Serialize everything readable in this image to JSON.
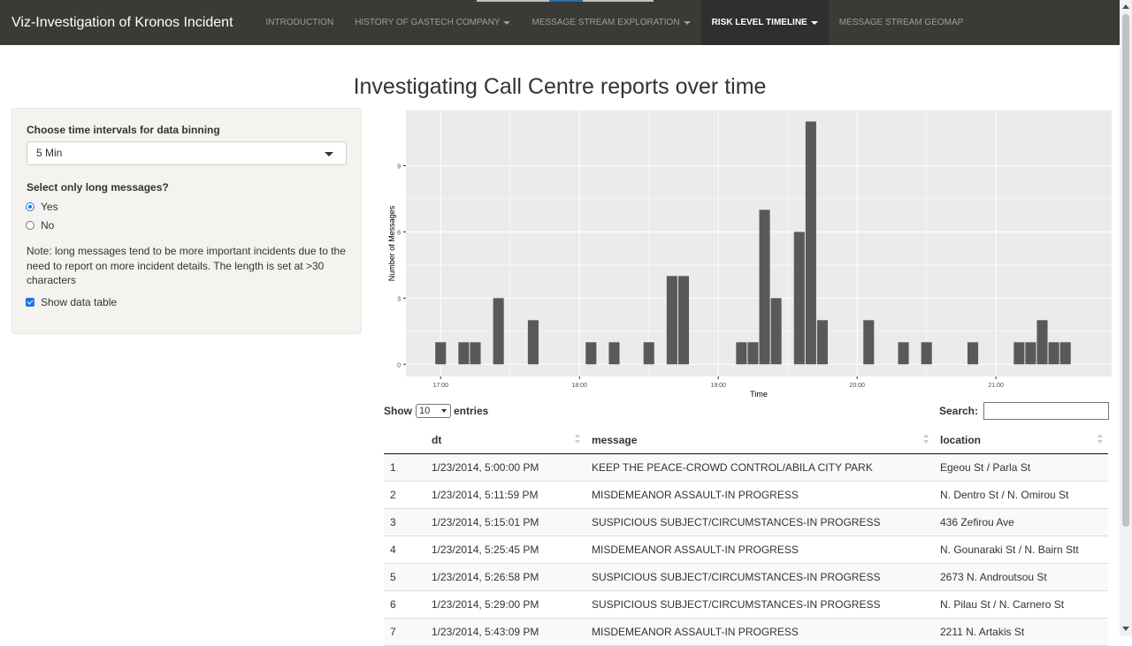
{
  "navbar": {
    "brand": "Viz-Investigation of Kronos Incident",
    "items": [
      {
        "label": "INTRODUCTION",
        "dropdown": false,
        "active": false
      },
      {
        "label": "HISTORY OF GASTECH COMPANY",
        "dropdown": true,
        "active": false
      },
      {
        "label": "MESSAGE STREAM EXPLORATION",
        "dropdown": true,
        "active": false
      },
      {
        "label": "RISK LEVEL TIMELINE",
        "dropdown": true,
        "active": true
      },
      {
        "label": "MESSAGE STREAM GEOMAP",
        "dropdown": false,
        "active": false
      }
    ]
  },
  "page": {
    "title": "Investigating Call Centre reports over time"
  },
  "sidebar": {
    "interval_label": "Choose time intervals for data binning",
    "interval_value": "5 Min",
    "long_label": "Select only long messages?",
    "option_yes": "Yes",
    "option_no": "No",
    "selected_option": "Yes",
    "note": "Note: long messages tend to be more important incidents due to the need to report on more incident details. The length is set at >30 characters",
    "show_table_label": "Show data table",
    "show_table_checked": true
  },
  "chart_data": {
    "type": "bar",
    "title": "",
    "xlabel": "Time",
    "ylabel": "Number of Messages",
    "x_ticks": [
      "17:00",
      "18:00",
      "19:00",
      "20:00",
      "21:00"
    ],
    "y_ticks": [
      0,
      3,
      6,
      9
    ],
    "xlim": [
      "16:45",
      "21:50"
    ],
    "ylim": [
      -0.55,
      11.5
    ],
    "bin_minutes": 5,
    "bins": [
      {
        "t": "17:00",
        "v": 1
      },
      {
        "t": "17:10",
        "v": 1
      },
      {
        "t": "17:15",
        "v": 1
      },
      {
        "t": "17:25",
        "v": 3
      },
      {
        "t": "17:40",
        "v": 2
      },
      {
        "t": "18:05",
        "v": 1
      },
      {
        "t": "18:15",
        "v": 1
      },
      {
        "t": "18:30",
        "v": 1
      },
      {
        "t": "18:40",
        "v": 4
      },
      {
        "t": "18:45",
        "v": 4
      },
      {
        "t": "19:10",
        "v": 1
      },
      {
        "t": "19:15",
        "v": 1
      },
      {
        "t": "19:20",
        "v": 7
      },
      {
        "t": "19:25",
        "v": 3
      },
      {
        "t": "19:35",
        "v": 6
      },
      {
        "t": "19:40",
        "v": 11
      },
      {
        "t": "19:45",
        "v": 2
      },
      {
        "t": "20:05",
        "v": 2
      },
      {
        "t": "20:20",
        "v": 1
      },
      {
        "t": "20:30",
        "v": 1
      },
      {
        "t": "20:50",
        "v": 1
      },
      {
        "t": "21:10",
        "v": 1
      },
      {
        "t": "21:15",
        "v": 1
      },
      {
        "t": "21:20",
        "v": 2
      },
      {
        "t": "21:25",
        "v": 1
      },
      {
        "t": "21:30",
        "v": 1
      }
    ],
    "colors": {
      "panel": "#ebebeb",
      "grid": "#ffffff",
      "bar": "#595959"
    }
  },
  "datatable": {
    "show_label": "Show",
    "length_value": "10",
    "entries_label": "entries",
    "search_label": "Search:",
    "columns": [
      "",
      "dt",
      "message",
      "location"
    ],
    "rows": [
      [
        "1",
        "1/23/2014, 5:00:00 PM",
        "KEEP THE PEACE-CROWD CONTROL/ABILA CITY PARK",
        "Egeou St / Parla St"
      ],
      [
        "2",
        "1/23/2014, 5:11:59 PM",
        "MISDEMEANOR ASSAULT-IN PROGRESS",
        "N. Dentro St / N. Omirou St"
      ],
      [
        "3",
        "1/23/2014, 5:15:01 PM",
        "SUSPICIOUS SUBJECT/CIRCUMSTANCES-IN PROGRESS",
        "436 Zefirou Ave"
      ],
      [
        "4",
        "1/23/2014, 5:25:45 PM",
        "MISDEMEANOR ASSAULT-IN PROGRESS",
        "N. Gounaraki St / N. Bairn Stt"
      ],
      [
        "5",
        "1/23/2014, 5:26:58 PM",
        "SUSPICIOUS SUBJECT/CIRCUMSTANCES-IN PROGRESS",
        "2673 N. Androutsou St"
      ],
      [
        "6",
        "1/23/2014, 5:29:00 PM",
        "SUSPICIOUS SUBJECT/CIRCUMSTANCES-IN PROGRESS",
        "N. Pilau St / N. Carnero St"
      ],
      [
        "7",
        "1/23/2014, 5:43:09 PM",
        "MISDEMEANOR ASSAULT-IN PROGRESS",
        "2211 N. Artakis St"
      ]
    ]
  }
}
